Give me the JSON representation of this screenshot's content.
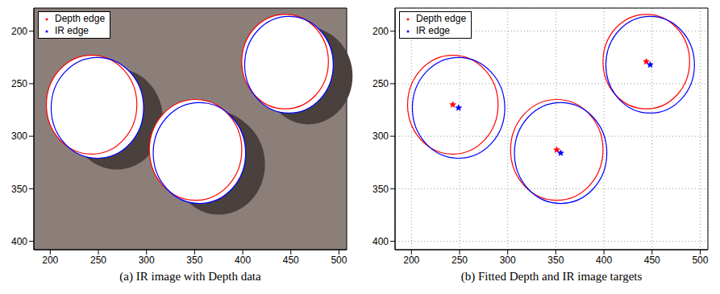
{
  "chart_data": [
    {
      "type": "image_overlay",
      "title": "(a) IR image with Depth data",
      "xlim": [
        183,
        508
      ],
      "ylim": [
        408,
        178
      ],
      "xticks": [
        200,
        250,
        300,
        350,
        400,
        450,
        500
      ],
      "yticks": [
        200,
        250,
        300,
        350,
        400
      ],
      "grid": false,
      "legend": "upper left",
      "series": [
        {
          "name": "Depth edge",
          "color": "#ff0000",
          "circles": [
            {
              "cx": 243,
              "cy": 270,
              "r": 47
            },
            {
              "cx": 351,
              "cy": 313,
              "r": 48
            },
            {
              "cx": 444,
              "cy": 229,
              "r": 45
            }
          ]
        },
        {
          "name": "IR edge",
          "color": "#0000ff",
          "circles": [
            {
              "cx": 249,
              "cy": 273,
              "r": 48
            },
            {
              "cx": 355,
              "cy": 316,
              "r": 48
            },
            {
              "cx": 448,
              "cy": 232,
              "r": 46
            }
          ]
        }
      ]
    },
    {
      "type": "scatter",
      "title": "(b) Fitted Depth and IR image targets",
      "xlim": [
        183,
        508
      ],
      "ylim": [
        408,
        178
      ],
      "xticks": [
        200,
        250,
        300,
        350,
        400,
        450,
        500
      ],
      "yticks": [
        200,
        250,
        300,
        350,
        400
      ],
      "grid": true,
      "legend": "upper left",
      "series": [
        {
          "name": "Depth edge",
          "color": "#ff0000",
          "marker": "star",
          "circles": [
            {
              "cx": 243,
              "cy": 270,
              "r": 47
            },
            {
              "cx": 351,
              "cy": 313,
              "r": 48
            },
            {
              "cx": 444,
              "cy": 229,
              "r": 45
            }
          ]
        },
        {
          "name": "IR edge",
          "color": "#0000ff",
          "marker": "star",
          "circles": [
            {
              "cx": 249,
              "cy": 273,
              "r": 48
            },
            {
              "cx": 355,
              "cy": 316,
              "r": 48
            },
            {
              "cx": 448,
              "cy": 232,
              "r": 46
            }
          ]
        }
      ]
    }
  ]
}
